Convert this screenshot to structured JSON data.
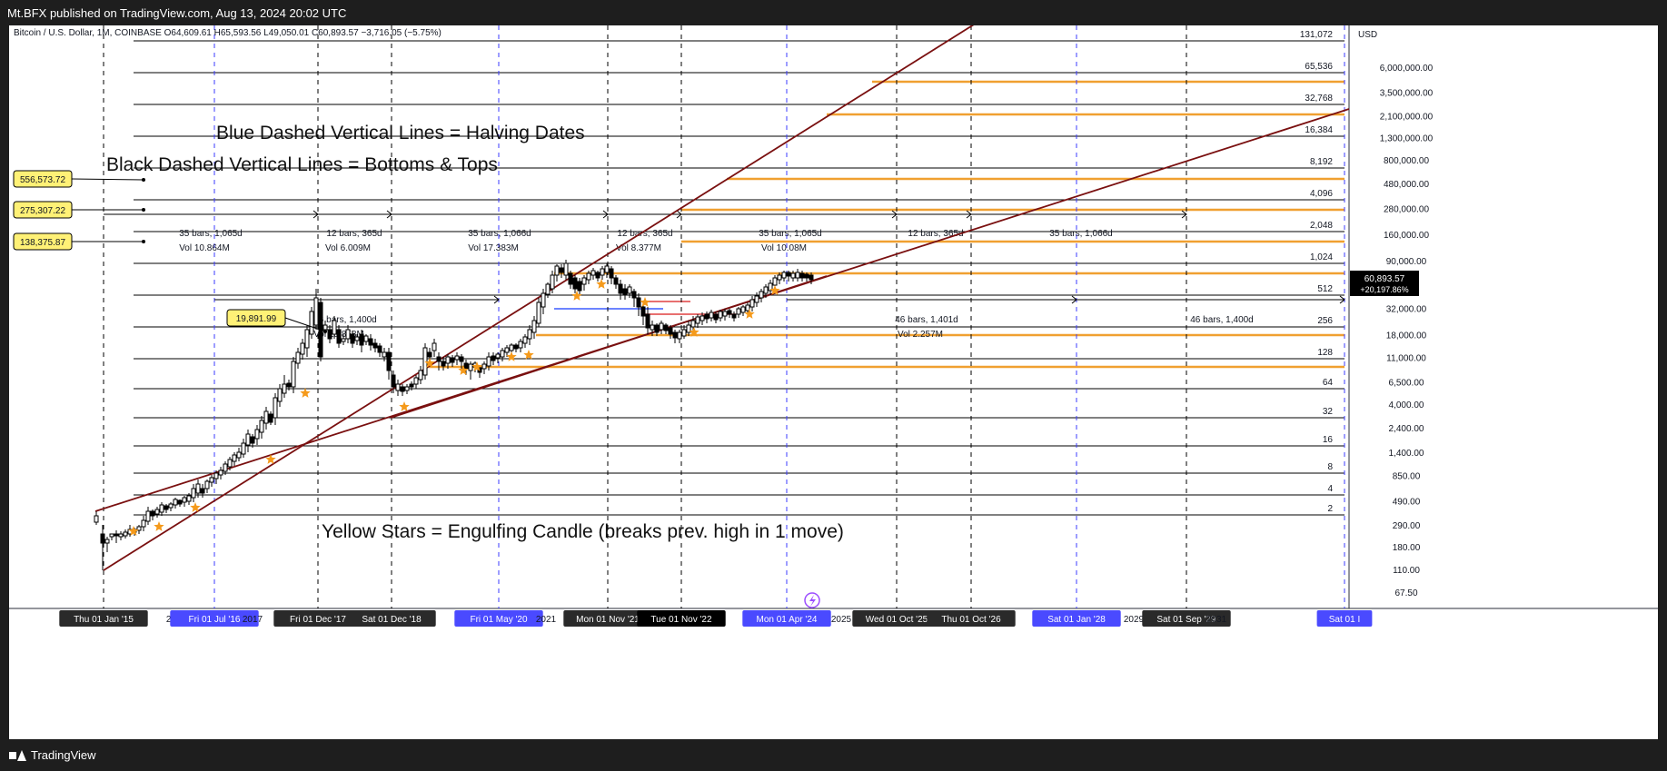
{
  "publish_line": "Mt.BFX published on TradingView.com, Aug 13, 2024 20:02 UTC",
  "branding": "TradingView",
  "legend_line": "Bitcoin / U.S. Dollar, 1M, COINBASE  O64,609.61  H65,593.56  L49,050.01  C60,893.57  −3,716.05 (−5.75%)",
  "chart_data": {
    "type": "candlestick",
    "symbol": "Bitcoin / U.S. Dollar",
    "interval": "1M",
    "exchange": "COINBASE",
    "ohlc": {
      "open": 64609.61,
      "high": 65593.56,
      "low": 49050.01,
      "close": 60893.57,
      "change": -3716.05,
      "change_pct": -5.75
    },
    "y_axis": {
      "currency": "USD",
      "scale": "log",
      "ticks": [
        "6,000,000.00",
        "3,500,000.00",
        "2,100,000.00",
        "1,300,000.00",
        "800,000.00",
        "480,000.00",
        "280,000.00",
        "160,000.00",
        "90,000.00",
        "32,000.00",
        "18,000.00",
        "11,000.00",
        "6,500.00",
        "4,000.00",
        "2,400.00",
        "1,400.00",
        "850.00",
        "490.00",
        "290.00",
        "180.00",
        "110.00",
        "67.50"
      ],
      "last_price_label": "60,893.57",
      "last_change_label": "+20,197.86%"
    },
    "x_axis": {
      "date_labels": [
        {
          "text": "Thu 01 Jan '15",
          "style": "dark"
        },
        {
          "text": "2016",
          "style": "plain"
        },
        {
          "text": "Fri 01 Jul '16",
          "style": "blue"
        },
        {
          "text": "2017",
          "style": "plain"
        },
        {
          "text": "Fri 01 Dec '17",
          "style": "dark"
        },
        {
          "text": "Sat 01 Dec '18",
          "style": "dark"
        },
        {
          "text": "2",
          "style": "plain"
        },
        {
          "text": "Fri 01 May '20",
          "style": "blue"
        },
        {
          "text": "2021",
          "style": "plain"
        },
        {
          "text": "Mon 01 Nov '21",
          "style": "dark"
        },
        {
          "text": "Tue 01 Nov '22",
          "style": "black"
        },
        {
          "text": "Mon 01 Apr '24",
          "style": "blue"
        },
        {
          "text": "2025",
          "style": "plain"
        },
        {
          "text": "Wed 01 Oct '25",
          "style": "dark"
        },
        {
          "text": "Thu 01 Oct '26",
          "style": "dark"
        },
        {
          "text": "Sat 01 Jan '28",
          "style": "blue"
        },
        {
          "text": "2029",
          "style": "plain"
        },
        {
          "text": "Sat 01 Sep '29",
          "style": "dark"
        },
        {
          "text": "2031",
          "style": "plain"
        },
        {
          "text": "Sat 01 I",
          "style": "blue"
        }
      ]
    },
    "powers_of_two_levels": [
      "131,072",
      "65,536",
      "32,768",
      "16,384",
      "8,192",
      "4,096",
      "2,048",
      "1,024",
      "512",
      "256",
      "128",
      "64",
      "32",
      "16",
      "8",
      "4",
      "2"
    ],
    "price_callouts": [
      "556,573.72",
      "275,307.22",
      "138,375.87",
      "19,891.99"
    ],
    "range_measures": [
      {
        "bars": "35 bars, 1,065d",
        "vol": "Vol 10.864M"
      },
      {
        "bars": "12 bars, 365d",
        "vol": "Vol 6.009M"
      },
      {
        "bars": "35 bars, 1,066d",
        "vol": "Vol 17.383M"
      },
      {
        "bars": "12 bars, 365d",
        "vol": "Vol 8.377M"
      },
      {
        "bars": "35 bars, 1,065d",
        "vol": "Vol 10.08M"
      },
      {
        "bars": "12 bars, 365d",
        "vol": ""
      },
      {
        "bars": "35 bars, 1,066d",
        "vol": ""
      },
      {
        "bars": "46 bars, 1,400d",
        "vol": "Vol 18.858M"
      },
      {
        "bars": "46 bars, 1,401d",
        "vol": "Vol 2.257M"
      },
      {
        "bars": "46 bars, 1,400d",
        "vol": ""
      }
    ],
    "annotations": [
      "Blue Dashed Vertical Lines = Halving Dates",
      "Black Dashed Vertical Lines = Bottoms & Tops",
      "Yellow Stars = Engulfing Candle (breaks prev. high in 1 move)"
    ],
    "colors": {
      "up": "#ffffff",
      "down": "#000000",
      "halving": "#3b3bff",
      "cycle": "#000000",
      "trend": "#7a1010",
      "level_orange": "#f0a030",
      "callout_fill": "#fff176",
      "star": "#f59a1b",
      "blue_label": "#4a4aff"
    }
  }
}
